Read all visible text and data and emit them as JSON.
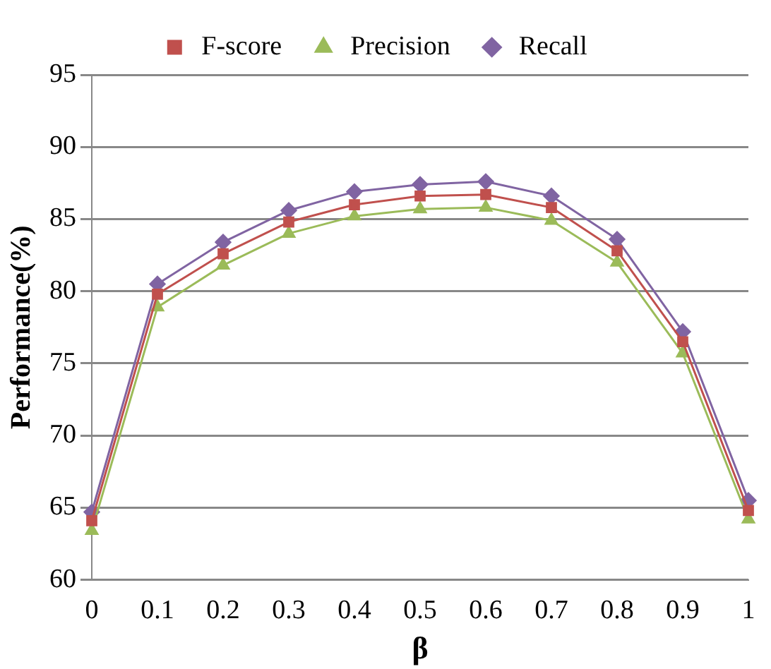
{
  "chart_data": {
    "type": "line",
    "xlabel": "β",
    "ylabel": "Performance(%)",
    "categories": [
      "0",
      "0.1",
      "0.2",
      "0.3",
      "0.4",
      "0.5",
      "0.6",
      "0.7",
      "0.8",
      "0.9",
      "1"
    ],
    "series": [
      {
        "name": "F-score",
        "color": "#c0504d",
        "marker": "square",
        "values": [
          64.1,
          79.8,
          82.6,
          84.8,
          86.0,
          86.6,
          86.7,
          85.8,
          82.8,
          76.5,
          64.8
        ]
      },
      {
        "name": "Precision",
        "color": "#9bbb59",
        "marker": "triangle",
        "values": [
          63.4,
          78.9,
          81.8,
          84.0,
          85.2,
          85.7,
          85.8,
          84.9,
          82.0,
          75.7,
          64.2
        ]
      },
      {
        "name": "Recall",
        "color": "#8064a2",
        "marker": "diamond",
        "values": [
          64.7,
          80.5,
          83.4,
          85.6,
          86.9,
          87.4,
          87.6,
          86.6,
          83.6,
          77.2,
          65.5
        ]
      }
    ],
    "ylim": [
      60,
      95
    ],
    "yticks": [
      60,
      65,
      70,
      75,
      80,
      85,
      90,
      95
    ],
    "grid": "y",
    "legend": "top"
  }
}
